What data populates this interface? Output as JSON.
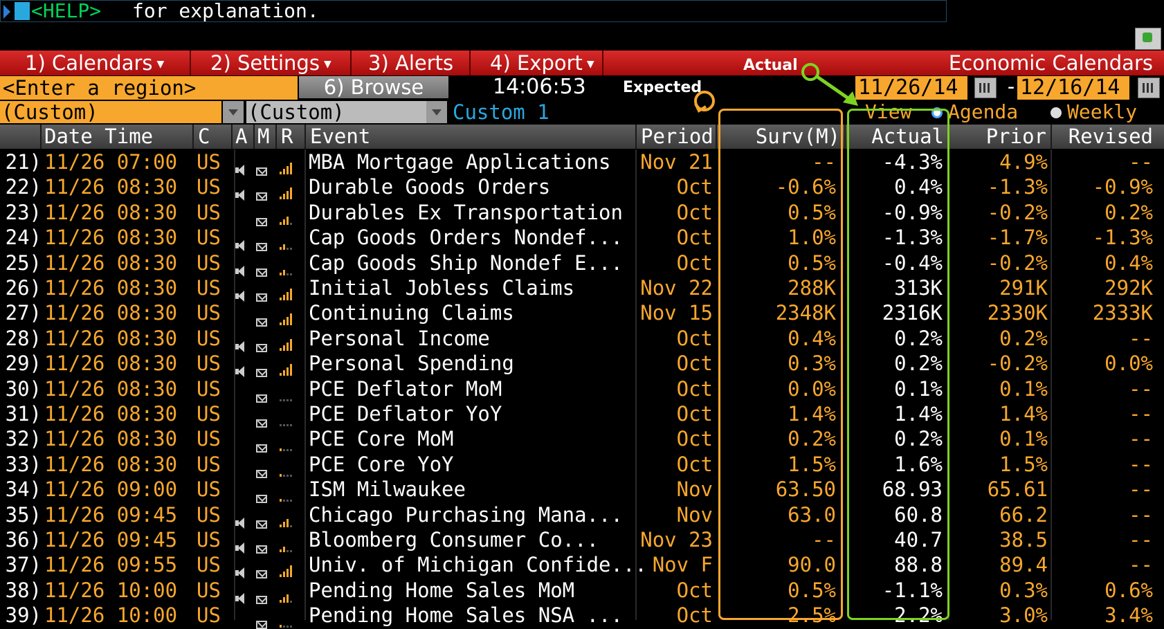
{
  "command": {
    "help": "<HELP>",
    "text": "for explanation."
  },
  "menu": {
    "items": [
      "1) Calendars",
      "2) Settings",
      "3) Alerts",
      "4) Export"
    ],
    "title": "Economic Calendars"
  },
  "annotations": {
    "actual": "Actual",
    "expected": "Expected"
  },
  "toolbar": {
    "region_placeholder": "<Enter a region>",
    "browse_label": "6) Browse",
    "time": "14:06:53",
    "date_from": "11/26/14",
    "date_sep": "-",
    "date_to": "12/16/14"
  },
  "filters": {
    "filter1": "(Custom)",
    "filter2": "(Custom)",
    "custom_name": "Custom 1",
    "view_label": "View",
    "view_options": [
      "Agenda",
      "Weekly"
    ],
    "view_selected": "Agenda"
  },
  "table": {
    "headers": [
      "Date Time",
      "C",
      "A",
      "M",
      "R",
      "Event",
      "Period",
      "Surv(M)",
      "Actual",
      "Prior",
      "Revised"
    ],
    "rows": [
      {
        "num": "21)",
        "dt": "11/26 07:00",
        "c": "US",
        "alert": true,
        "rel": 4,
        "event": "MBA Mortgage Applications",
        "period": "Nov 21",
        "surv": "--",
        "actual": "-4.3%",
        "prior": "4.9%",
        "revised": "--"
      },
      {
        "num": "22)",
        "dt": "11/26 08:30",
        "c": "US",
        "alert": true,
        "rel": 4,
        "event": "Durable Goods Orders",
        "period": "Oct",
        "surv": "-0.6%",
        "actual": "0.4%",
        "prior": "-1.3%",
        "revised": "-0.9%"
      },
      {
        "num": "23)",
        "dt": "11/26 08:30",
        "c": "US",
        "alert": false,
        "rel": 3,
        "event": "Durables Ex Transportation",
        "period": "Oct",
        "surv": "0.5%",
        "actual": "-0.9%",
        "prior": "-0.2%",
        "revised": "0.2%"
      },
      {
        "num": "24)",
        "dt": "11/26 08:30",
        "c": "US",
        "alert": true,
        "rel": 2,
        "event": "Cap Goods Orders Nondef...",
        "period": "Oct",
        "surv": "1.0%",
        "actual": "-1.3%",
        "prior": "-1.7%",
        "revised": "-1.3%"
      },
      {
        "num": "25)",
        "dt": "11/26 08:30",
        "c": "US",
        "alert": true,
        "rel": 2,
        "event": "Cap Goods Ship Nondef E...",
        "period": "Oct",
        "surv": "0.5%",
        "actual": "-0.4%",
        "prior": "-0.2%",
        "revised": "0.4%"
      },
      {
        "num": "26)",
        "dt": "11/26 08:30",
        "c": "US",
        "alert": true,
        "rel": 4,
        "event": "Initial Jobless Claims",
        "period": "Nov 22",
        "surv": "288K",
        "actual": "313K",
        "prior": "291K",
        "revised": "292K"
      },
      {
        "num": "27)",
        "dt": "11/26 08:30",
        "c": "US",
        "alert": false,
        "rel": 4,
        "event": "Continuing Claims",
        "period": "Nov 15",
        "surv": "2348K",
        "actual": "2316K",
        "prior": "2330K",
        "revised": "2333K"
      },
      {
        "num": "28)",
        "dt": "11/26 08:30",
        "c": "US",
        "alert": true,
        "rel": 4,
        "event": "Personal Income",
        "period": "Oct",
        "surv": "0.4%",
        "actual": "0.2%",
        "prior": "0.2%",
        "revised": "--"
      },
      {
        "num": "29)",
        "dt": "11/26 08:30",
        "c": "US",
        "alert": true,
        "rel": 4,
        "event": "Personal Spending",
        "period": "Oct",
        "surv": "0.3%",
        "actual": "0.2%",
        "prior": "-0.2%",
        "revised": "0.0%"
      },
      {
        "num": "30)",
        "dt": "11/26 08:30",
        "c": "US",
        "alert": false,
        "rel": 0,
        "event": "PCE Deflator MoM",
        "period": "Oct",
        "surv": "0.0%",
        "actual": "0.1%",
        "prior": "0.1%",
        "revised": "--"
      },
      {
        "num": "31)",
        "dt": "11/26 08:30",
        "c": "US",
        "alert": false,
        "rel": 0,
        "event": "PCE Deflator YoY",
        "period": "Oct",
        "surv": "1.4%",
        "actual": "1.4%",
        "prior": "1.4%",
        "revised": "--"
      },
      {
        "num": "32)",
        "dt": "11/26 08:30",
        "c": "US",
        "alert": false,
        "rel": 1,
        "event": "PCE Core MoM",
        "period": "Oct",
        "surv": "0.2%",
        "actual": "0.2%",
        "prior": "0.1%",
        "revised": "--"
      },
      {
        "num": "33)",
        "dt": "11/26 08:30",
        "c": "US",
        "alert": false,
        "rel": 1,
        "event": "PCE Core YoY",
        "period": "Oct",
        "surv": "1.5%",
        "actual": "1.6%",
        "prior": "1.5%",
        "revised": "--"
      },
      {
        "num": "34)",
        "dt": "11/26 09:00",
        "c": "US",
        "alert": false,
        "rel": 1,
        "event": "ISM Milwaukee",
        "period": "Nov",
        "surv": "63.50",
        "actual": "68.93",
        "prior": "65.61",
        "revised": "--"
      },
      {
        "num": "35)",
        "dt": "11/26 09:45",
        "c": "US",
        "alert": true,
        "rel": 3,
        "event": "Chicago Purchasing Mana...",
        "period": "Nov",
        "surv": "63.0",
        "actual": "60.8",
        "prior": "66.2",
        "revised": "--"
      },
      {
        "num": "36)",
        "dt": "11/26 09:45",
        "c": "US",
        "alert": true,
        "rel": 2,
        "event": "Bloomberg Consumer Co...",
        "period": "Nov 23",
        "surv": "--",
        "actual": "40.7",
        "prior": "38.5",
        "revised": "--"
      },
      {
        "num": "37)",
        "dt": "11/26 09:55",
        "c": "US",
        "alert": true,
        "rel": 4,
        "event": "Univ. of Michigan Confide...",
        "period": "Nov F",
        "surv": "90.0",
        "actual": "88.8",
        "prior": "89.4",
        "revised": "--"
      },
      {
        "num": "38)",
        "dt": "11/26 10:00",
        "c": "US",
        "alert": true,
        "rel": 3,
        "event": "Pending Home Sales MoM",
        "period": "Oct",
        "surv": "0.5%",
        "actual": "-1.1%",
        "prior": "0.3%",
        "revised": "0.6%"
      },
      {
        "num": "39)",
        "dt": "11/26 10:00",
        "c": "US",
        "alert": false,
        "rel": 1,
        "event": "Pending Home Sales NSA ...",
        "period": "Oct",
        "surv": "2.5%",
        "actual": "2.2%",
        "prior": "3.0%",
        "revised": "3.4%"
      }
    ]
  },
  "colors": {
    "orange": "#f7a72d",
    "menu_red": "#c41a1a",
    "highlight_surv": "#f7a72d",
    "highlight_actual": "#7ed321",
    "accent_blue": "#29a8e0"
  }
}
